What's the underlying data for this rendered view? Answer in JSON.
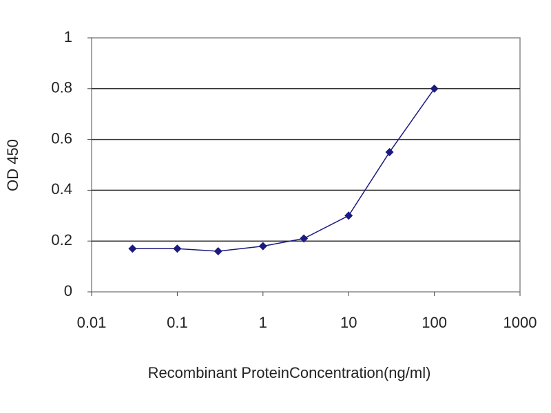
{
  "chart_data": {
    "type": "line",
    "xlabel": "Recombinant ProteinConcentration(ng/ml)",
    "ylabel": "OD 450",
    "x": [
      0.03,
      0.1,
      0.3,
      1,
      3,
      10,
      30,
      100
    ],
    "values": [
      0.17,
      0.17,
      0.16,
      0.18,
      0.21,
      0.3,
      0.55,
      0.8
    ],
    "color": "#1a1a80",
    "xlog": true,
    "xlim": [
      0.01,
      1000
    ],
    "xticks": [
      0.01,
      0.1,
      1,
      10,
      100,
      1000
    ],
    "ylim": [
      0,
      1
    ],
    "yticks": [
      0,
      0.2,
      0.4,
      0.6,
      0.8,
      1
    ],
    "grid": true
  }
}
